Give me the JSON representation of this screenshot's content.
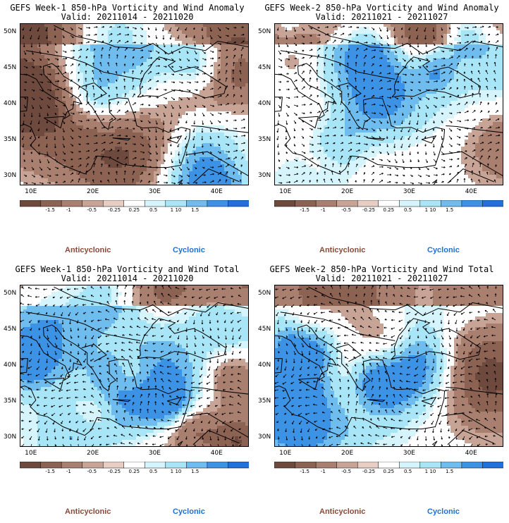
{
  "panels": [
    {
      "title": "GEFS Week-1 850-hPa Vorticity and Wind Anomaly",
      "valid": "Valid: 20211014 - 20211020",
      "seed": 1,
      "blue_bias": 0.25
    },
    {
      "title": "GEFS Week-2 850-hPa Vorticity and Wind Anomaly",
      "valid": "Valid: 20211021 - 20211027",
      "seed": 2,
      "blue_bias": 0.05
    },
    {
      "title": "GEFS Week-1 850-hPa Vorticity and Wind Total",
      "valid": "Valid: 20211014 - 20211020",
      "seed": 3,
      "blue_bias": 0.15
    },
    {
      "title": "GEFS Week-2 850-hPa Vorticity and Wind Total",
      "valid": "Valid: 20211021 - 20211027",
      "seed": 4,
      "blue_bias": 0.1
    }
  ],
  "lat_labels": [
    "50N",
    "45N",
    "40N",
    "35N",
    "30N"
  ],
  "lon_labels": [
    "10E",
    "20E",
    "30E",
    "40E"
  ],
  "colorbar": {
    "labels": [
      "-1.5",
      "-1",
      "-0.5",
      "-0.25",
      "0.25",
      "0.5",
      "1",
      "1.5"
    ],
    "scale_label": "10",
    "colors": [
      "#6e4a3e",
      "#8c6253",
      "#a97f6f",
      "#c8a497",
      "#e7cdc4",
      "#ffffff",
      "#d6f4fb",
      "#a8e5f7",
      "#6fbdee",
      "#3c93e6",
      "#2270dc"
    ]
  },
  "legend": {
    "anticyclonic": "Anticyclonic",
    "cyclonic": "Cyclonic"
  }
}
